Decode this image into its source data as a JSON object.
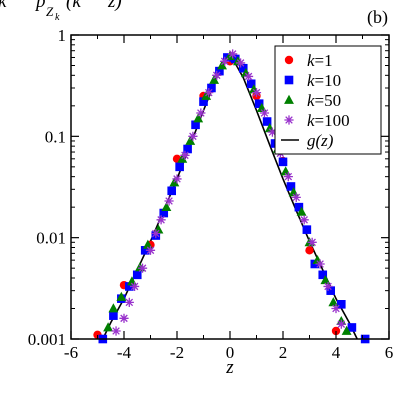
{
  "chart_data": {
    "type": "scatter",
    "panel_label": "(b)",
    "ylabel_fragment": "k",
    "ylabel_p": "p",
    "ylabel_sub": "Z",
    "ylabel_subsub": "k",
    "ylabel_paren": "(k",
    "ylabel_rest": "z)",
    "xlabel": "z",
    "xlim": [
      -6,
      6
    ],
    "ylim": [
      0.001,
      1
    ],
    "yscale": "log",
    "x_ticks": [
      -6,
      -4,
      -2,
      0,
      2,
      4,
      6
    ],
    "x_tick_labels": [
      "-6",
      "-4",
      "-2",
      "0",
      "2",
      "4",
      "6"
    ],
    "y_ticks": [
      0.001,
      0.01,
      0.1,
      1
    ],
    "y_tick_labels": [
      "0.001",
      "0.01",
      "0.1",
      "1"
    ],
    "legend_position": "top-right",
    "series": [
      {
        "name": "k=1",
        "label_k": "k",
        "label_eq": "=1",
        "marker": "circle",
        "color": "#ff0000",
        "points": [
          [
            -5.0,
            0.0011
          ],
          [
            -4.0,
            0.0034
          ],
          [
            -3.0,
            0.0085
          ],
          [
            -2.0,
            0.06
          ],
          [
            -1.0,
            0.25
          ],
          [
            0.0,
            0.55
          ],
          [
            1.0,
            0.25
          ],
          [
            2.0,
            0.057
          ],
          [
            3.0,
            0.0075
          ],
          [
            4.0,
            0.0012
          ]
        ]
      },
      {
        "name": "k=10",
        "label_k": "k",
        "label_eq": "=10",
        "marker": "square",
        "color": "#0000ff",
        "points": [
          [
            -4.8,
            0.001
          ],
          [
            -4.4,
            0.0017
          ],
          [
            -4.1,
            0.0025
          ],
          [
            -3.8,
            0.0033
          ],
          [
            -3.5,
            0.0043
          ],
          [
            -3.2,
            0.0075
          ],
          [
            -2.8,
            0.0105
          ],
          [
            -2.5,
            0.0175
          ],
          [
            -2.2,
            0.029
          ],
          [
            -1.9,
            0.05
          ],
          [
            -1.6,
            0.075
          ],
          [
            -1.3,
            0.13
          ],
          [
            -1.0,
            0.22
          ],
          [
            -0.7,
            0.3
          ],
          [
            -0.4,
            0.44
          ],
          [
            -0.1,
            0.6
          ],
          [
            0.2,
            0.58
          ],
          [
            0.5,
            0.47
          ],
          [
            0.8,
            0.33
          ],
          [
            1.1,
            0.21
          ],
          [
            1.4,
            0.14
          ],
          [
            1.7,
            0.085
          ],
          [
            2.0,
            0.056
          ],
          [
            2.3,
            0.032
          ],
          [
            2.6,
            0.02
          ],
          [
            2.9,
            0.012
          ],
          [
            3.2,
            0.0055
          ],
          [
            3.5,
            0.0043
          ],
          [
            3.8,
            0.003
          ],
          [
            4.2,
            0.0022
          ],
          [
            4.6,
            0.0013
          ],
          [
            5.1,
            0.001
          ]
        ]
      },
      {
        "name": "k=50",
        "label_k": "k",
        "label_eq": "=50",
        "marker": "triangle",
        "color": "#008000",
        "points": [
          [
            -4.6,
            0.0013
          ],
          [
            -4.4,
            0.002
          ],
          [
            -4.1,
            0.0026
          ],
          [
            -3.7,
            0.0037
          ],
          [
            -3.4,
            0.0051
          ],
          [
            -3.1,
            0.0085
          ],
          [
            -2.7,
            0.012
          ],
          [
            -2.4,
            0.02
          ],
          [
            -2.1,
            0.035
          ],
          [
            -1.8,
            0.06
          ],
          [
            -1.5,
            0.09
          ],
          [
            -1.2,
            0.15
          ],
          [
            -0.9,
            0.25
          ],
          [
            -0.6,
            0.36
          ],
          [
            -0.3,
            0.5
          ],
          [
            0.0,
            0.62
          ],
          [
            0.3,
            0.55
          ],
          [
            0.6,
            0.42
          ],
          [
            0.9,
            0.29
          ],
          [
            1.2,
            0.19
          ],
          [
            1.5,
            0.12
          ],
          [
            1.8,
            0.075
          ],
          [
            2.1,
            0.045
          ],
          [
            2.4,
            0.028
          ],
          [
            2.7,
            0.018
          ],
          [
            3.0,
            0.009
          ],
          [
            3.3,
            0.006
          ],
          [
            3.6,
            0.0038
          ],
          [
            3.9,
            0.0023
          ],
          [
            4.2,
            0.0015
          ],
          [
            4.4,
            0.0012
          ]
        ]
      },
      {
        "name": "k=100",
        "label_k": "k",
        "label_eq": "=100",
        "marker": "star",
        "color": "#9932cc",
        "points": [
          [
            -4.3,
            0.0012
          ],
          [
            -4.0,
            0.0016
          ],
          [
            -3.8,
            0.0023
          ],
          [
            -3.6,
            0.0033
          ],
          [
            -3.3,
            0.005
          ],
          [
            -3.0,
            0.0075
          ],
          [
            -2.8,
            0.011
          ],
          [
            -2.6,
            0.015
          ],
          [
            -2.3,
            0.023
          ],
          [
            -2.0,
            0.038
          ],
          [
            -1.7,
            0.065
          ],
          [
            -1.4,
            0.1
          ],
          [
            -1.1,
            0.17
          ],
          [
            -0.8,
            0.27
          ],
          [
            -0.5,
            0.4
          ],
          [
            -0.2,
            0.55
          ],
          [
            0.1,
            0.65
          ],
          [
            0.4,
            0.53
          ],
          [
            0.7,
            0.39
          ],
          [
            1.0,
            0.27
          ],
          [
            1.3,
            0.17
          ],
          [
            1.6,
            0.11
          ],
          [
            1.9,
            0.068
          ],
          [
            2.2,
            0.04
          ],
          [
            2.5,
            0.025
          ],
          [
            2.8,
            0.015
          ],
          [
            3.1,
            0.009
          ],
          [
            3.4,
            0.0055
          ],
          [
            3.7,
            0.0033
          ],
          [
            4.0,
            0.002
          ],
          [
            4.2,
            0.0014
          ]
        ]
      },
      {
        "name": "g(z)",
        "label_func": "g",
        "label_arg": "(z)",
        "marker": "line",
        "color": "#000000",
        "points": [
          [
            -4.8,
            0.001
          ],
          [
            -4.5,
            0.00145
          ],
          [
            -4.0,
            0.0025
          ],
          [
            -3.5,
            0.0048
          ],
          [
            -3.0,
            0.0092
          ],
          [
            -2.5,
            0.0185
          ],
          [
            -2.0,
            0.038
          ],
          [
            -1.5,
            0.082
          ],
          [
            -1.0,
            0.18
          ],
          [
            -0.5,
            0.38
          ],
          [
            0.0,
            0.65
          ],
          [
            0.5,
            0.38
          ],
          [
            1.0,
            0.18
          ],
          [
            1.5,
            0.082
          ],
          [
            2.0,
            0.038
          ],
          [
            2.5,
            0.0185
          ],
          [
            3.0,
            0.0092
          ],
          [
            3.5,
            0.0048
          ],
          [
            4.0,
            0.0025
          ],
          [
            4.5,
            0.00145
          ],
          [
            4.8,
            0.001
          ]
        ]
      }
    ]
  }
}
